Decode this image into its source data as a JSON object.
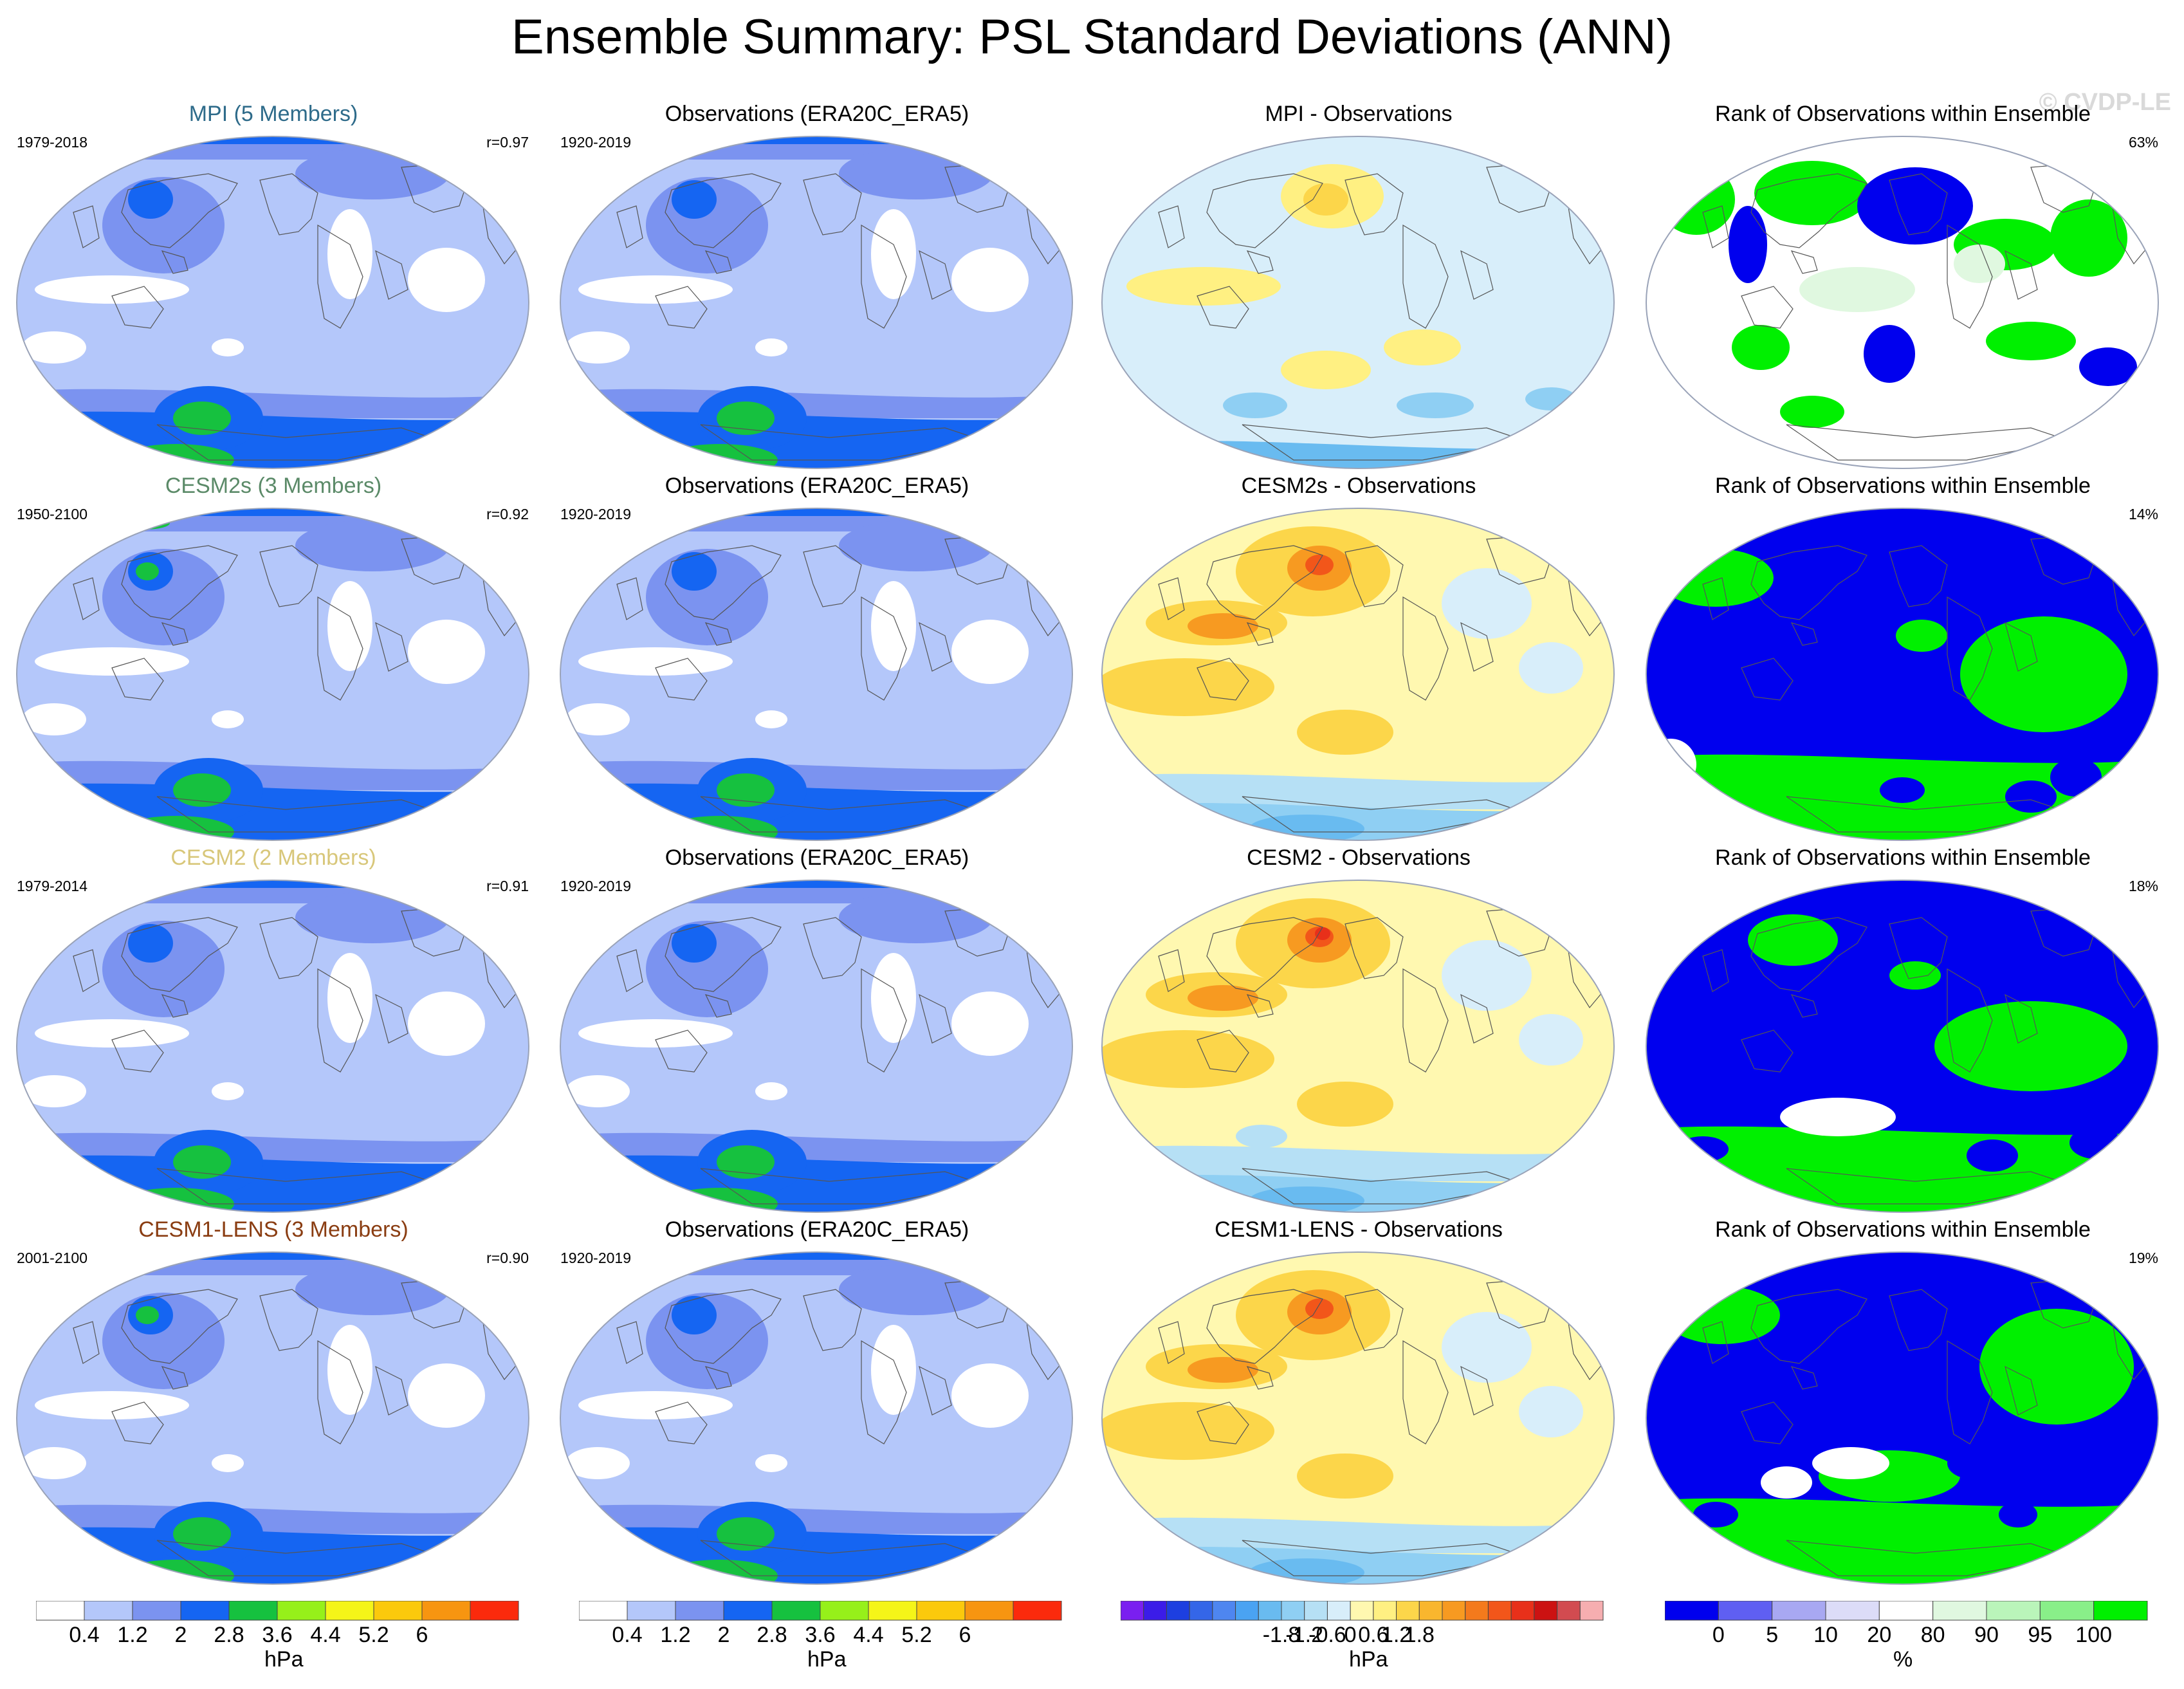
{
  "title": "Ensemble Summary: PSL Standard Deviations (ANN)",
  "copyright": "© CVDP-LE",
  "rows": [
    {
      "model": {
        "title": "MPI (5 Members)",
        "title_color": "#2e6b8a",
        "years": "1979-2018",
        "corr": "r=0.97"
      },
      "obs": {
        "title": "Observations (ERA20C_ERA5)",
        "years": "1920-2019"
      },
      "diff": {
        "title": "MPI - Observations"
      },
      "rank": {
        "title": "Rank of Observations within Ensemble",
        "pct": "63%"
      }
    },
    {
      "model": {
        "title": "CESM2s (3 Members)",
        "title_color": "#5b8a68",
        "years": "1950-2100",
        "corr": "r=0.92"
      },
      "obs": {
        "title": "Observations (ERA20C_ERA5)",
        "years": "1920-2019"
      },
      "diff": {
        "title": "CESM2s - Observations"
      },
      "rank": {
        "title": "Rank of Observations within Ensemble",
        "pct": "14%"
      }
    },
    {
      "model": {
        "title": "CESM2 (2 Members)",
        "title_color": "#d8c77a",
        "years": "1979-2014",
        "corr": "r=0.91"
      },
      "obs": {
        "title": "Observations (ERA20C_ERA5)",
        "years": "1920-2019"
      },
      "diff": {
        "title": "CESM2 - Observations"
      },
      "rank": {
        "title": "Rank of Observations within Ensemble",
        "pct": "18%"
      }
    },
    {
      "model": {
        "title": "CESM1-LENS (3 Members)",
        "title_color": "#8a3d12",
        "years": "2001-2100",
        "corr": "r=0.90"
      },
      "obs": {
        "title": "Observations (ERA20C_ERA5)",
        "years": "1920-2019"
      },
      "diff": {
        "title": "CESM1-LENS - Observations"
      },
      "rank": {
        "title": "Rank of Observations within Ensemble",
        "pct": "19%"
      }
    }
  ],
  "colorbars": {
    "sd": {
      "colors": [
        "#ffffff",
        "#b4c7fa",
        "#7b93f0",
        "#1565f2",
        "#16c13f",
        "#96f01a",
        "#f5f518",
        "#fbc90c",
        "#f79510",
        "#fb2a0c"
      ],
      "labels": [
        "0.4",
        "1.2",
        "2",
        "2.8",
        "3.6",
        "4.4",
        "5.2",
        "6"
      ],
      "unit": "hPa"
    },
    "diff": {
      "colors": [
        "#7a1ff0",
        "#3b1ce8",
        "#1d3fe0",
        "#3466e8",
        "#4e86f0",
        "#4aa3f2",
        "#69bbf0",
        "#8fcff3",
        "#b6e0f5",
        "#d8eefa",
        "#fff8b0",
        "#fff082",
        "#fcd64a",
        "#f9b62e",
        "#f79a21",
        "#f47a1c",
        "#f2561a",
        "#e8301a",
        "#cc1212",
        "#d24b50",
        "#f6aeb0"
      ],
      "labels": [
        "-1.8",
        "-1.2",
        "-0.6",
        "0",
        "0.6",
        "1.2",
        "1.8"
      ],
      "unit": "hPa"
    },
    "rank": {
      "colors": [
        "#0000ee",
        "#5f5ff2",
        "#a8a8f2",
        "#dcdcf8",
        "#ffffff",
        "#e0f8e0",
        "#baf5ba",
        "#89ef89",
        "#00f000"
      ],
      "labels": [
        "0",
        "5",
        "10",
        "20",
        "80",
        "90",
        "95",
        "100"
      ],
      "unit": "%"
    }
  },
  "chart_data": {
    "type": "heatmap",
    "description_units": "PSL standard deviation in hPa; differences in hPa; rank in %",
    "sd_levels": [
      0.4,
      1.2,
      2,
      2.8,
      3.6,
      4.4,
      5.2,
      6
    ],
    "diff_levels": [
      -1.8,
      -1.2,
      -0.6,
      0,
      0.6,
      1.2,
      1.8
    ],
    "rank_levels": [
      0,
      5,
      10,
      20,
      80,
      90,
      95,
      100
    ],
    "pattern_correlations": [
      0.97,
      0.92,
      0.91,
      0.9
    ],
    "rank_percent_scores": [
      63,
      14,
      18,
      19
    ]
  }
}
